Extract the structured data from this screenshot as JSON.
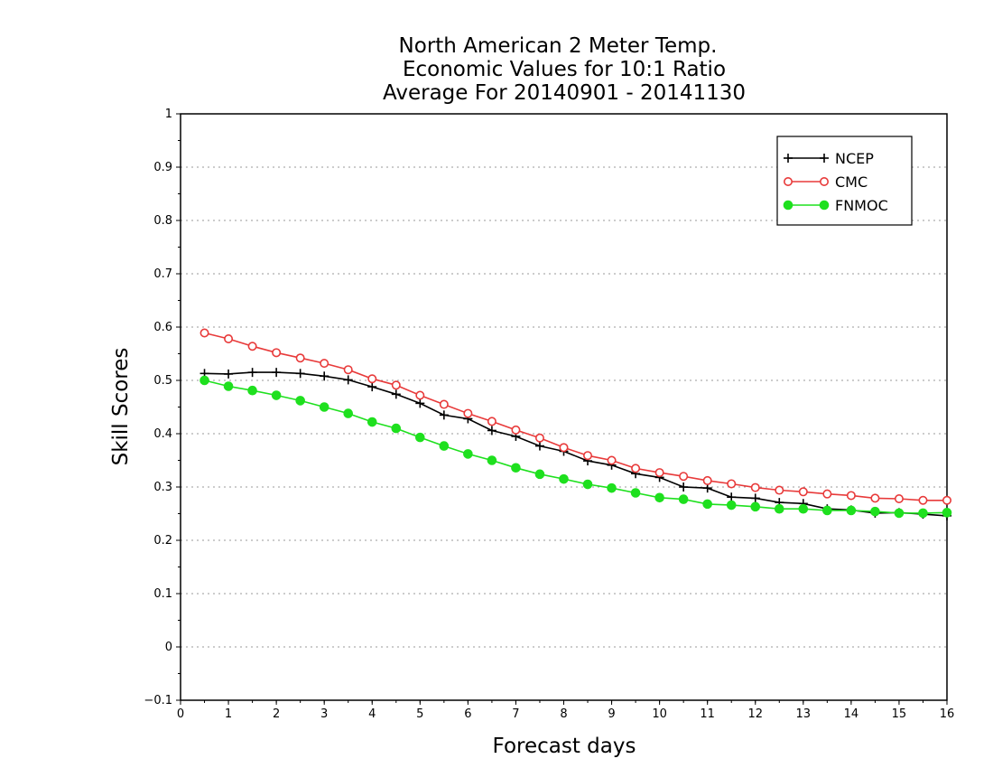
{
  "chart_data": {
    "type": "line",
    "title_lines": [
      "North American 2 Meter Temp.",
      "Economic Values for 10:1 Ratio",
      "Average For 20140901 - 20141130"
    ],
    "xlabel": "Forecast days",
    "ylabel": "Skill Scores",
    "xlim": [
      0,
      16
    ],
    "ylim": [
      -0.1,
      1
    ],
    "xticks": [
      0,
      1,
      2,
      3,
      4,
      5,
      6,
      7,
      8,
      9,
      10,
      11,
      12,
      13,
      14,
      15,
      16
    ],
    "yticks": [
      -0.1,
      0,
      0.1,
      0.2,
      0.3,
      0.4,
      0.5,
      0.6,
      0.7,
      0.8,
      0.9,
      1
    ],
    "ytick_labels": [
      "−0.1",
      "0",
      "0.1",
      "0.2",
      "0.3",
      "0.4",
      "0.5",
      "0.6",
      "0.7",
      "0.8",
      "0.9",
      "1"
    ],
    "grid": "horizontal dotted",
    "legend_position": "top-right",
    "x": [
      0.5,
      1,
      1.5,
      2,
      2.5,
      3,
      3.5,
      4,
      4.5,
      5,
      5.5,
      6,
      6.5,
      7,
      7.5,
      8,
      8.5,
      9,
      9.5,
      10,
      10.5,
      11,
      11.5,
      12,
      12.5,
      13,
      13.5,
      14,
      14.5,
      15,
      15.5,
      16
    ],
    "series": [
      {
        "name": "NCEP",
        "color": "#000000",
        "marker": "plus",
        "values": [
          0.513,
          0.512,
          0.515,
          0.515,
          0.513,
          0.508,
          0.501,
          0.488,
          0.474,
          0.457,
          0.435,
          0.428,
          0.406,
          0.395,
          0.377,
          0.367,
          0.349,
          0.341,
          0.325,
          0.318,
          0.3,
          0.298,
          0.281,
          0.279,
          0.271,
          0.269,
          0.259,
          0.257,
          0.251,
          0.252,
          0.249,
          0.246
        ]
      },
      {
        "name": "CMC",
        "color": "#e83a3a",
        "marker": "open-circle",
        "values": [
          0.589,
          0.578,
          0.564,
          0.552,
          0.542,
          0.532,
          0.52,
          0.503,
          0.491,
          0.472,
          0.455,
          0.438,
          0.423,
          0.407,
          0.392,
          0.374,
          0.359,
          0.35,
          0.335,
          0.327,
          0.32,
          0.312,
          0.306,
          0.299,
          0.294,
          0.291,
          0.287,
          0.284,
          0.279,
          0.278,
          0.275,
          0.275
        ]
      },
      {
        "name": "FNMOC",
        "color": "#1ee01e",
        "marker": "filled-circle",
        "values": [
          0.5,
          0.489,
          0.481,
          0.472,
          0.462,
          0.45,
          0.438,
          0.422,
          0.41,
          0.393,
          0.377,
          0.362,
          0.35,
          0.336,
          0.324,
          0.315,
          0.305,
          0.298,
          0.289,
          0.28,
          0.277,
          0.268,
          0.266,
          0.263,
          0.259,
          0.259,
          0.256,
          0.256,
          0.254,
          0.251,
          0.251,
          0.252
        ]
      }
    ]
  }
}
